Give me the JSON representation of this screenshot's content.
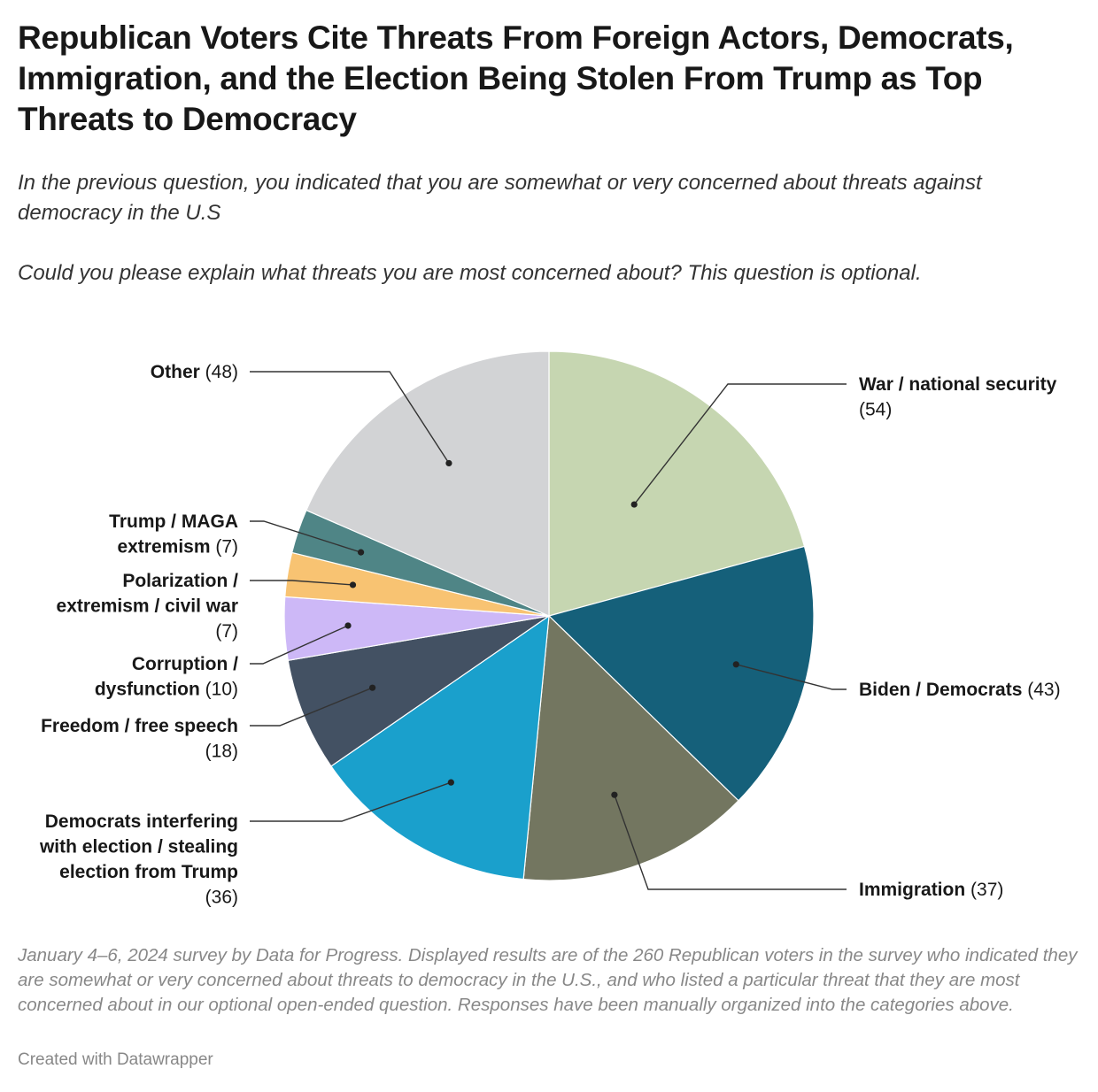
{
  "title": "Republican Voters Cite Threats From Foreign Actors, Democrats, Immigration, and the Election Being Stolen From Trump as Top Threats to Democracy",
  "subtitle_line1": "In the previous question, you indicated that you are somewhat or very concerned about threats against democracy in the U.S",
  "subtitle_line2": "Could you please explain what threats you are most concerned about? This question is optional.",
  "notes": "January 4–6, 2024 survey by Data for Progress. Displayed results are of the 260 Republican voters in the survey who indicated they are somewhat or very concerned about threats to democracy in the U.S., and who listed a particular threat that they are most concerned about in our optional open-ended question. Responses have been manually organized into the categories above.",
  "credit": "Created with Datawrapper",
  "chart_data": {
    "type": "pie",
    "title": "Republican Voters Cite Threats From Foreign Actors, Democrats, Immigration, and the Election Being Stolen From Trump as Top Threats to Democracy",
    "total": 260,
    "slices": [
      {
        "label": "War / national security",
        "value": 54,
        "color": "#c6d6b1",
        "label_lines": [
          [
            "War / national security",
            ""
          ],
          [
            "",
            "(54)"
          ]
        ]
      },
      {
        "label": "Biden / Democrats",
        "value": 43,
        "color": "#15607a",
        "label_lines": [
          [
            "Biden / Democrats",
            "(43)"
          ]
        ]
      },
      {
        "label": "Immigration",
        "value": 37,
        "color": "#737660",
        "label_lines": [
          [
            "Immigration",
            "(37)"
          ]
        ]
      },
      {
        "label": "Democrats interfering with election / stealing election from Trump",
        "value": 36,
        "color": "#1aa0cc",
        "label_lines": [
          [
            "Democrats interfering",
            ""
          ],
          [
            "with election / stealing",
            ""
          ],
          [
            "election from Trump",
            ""
          ],
          [
            "",
            "(36)"
          ]
        ]
      },
      {
        "label": "Freedom / free speech",
        "value": 18,
        "color": "#435163",
        "label_lines": [
          [
            "Freedom / free speech",
            ""
          ],
          [
            "",
            "(18)"
          ]
        ]
      },
      {
        "label": "Corruption / dysfunction",
        "value": 10,
        "color": "#cdb8f7",
        "label_lines": [
          [
            "Corruption /",
            ""
          ],
          [
            "dysfunction",
            "(10)"
          ]
        ]
      },
      {
        "label": "Polarization / extremism / civil war",
        "value": 7,
        "color": "#f8c372",
        "label_lines": [
          [
            "Polarization /",
            ""
          ],
          [
            "extremism / civil war",
            ""
          ],
          [
            "",
            "(7)"
          ]
        ]
      },
      {
        "label": "Trump / MAGA extremism",
        "value": 7,
        "color": "#4f8586",
        "label_lines": [
          [
            "Trump / MAGA",
            ""
          ],
          [
            "extremism",
            "(7)"
          ]
        ]
      },
      {
        "label": "Other",
        "value": 48,
        "color": "#d2d3d5",
        "label_lines": [
          [
            "Other",
            "(48)"
          ]
        ]
      }
    ]
  }
}
